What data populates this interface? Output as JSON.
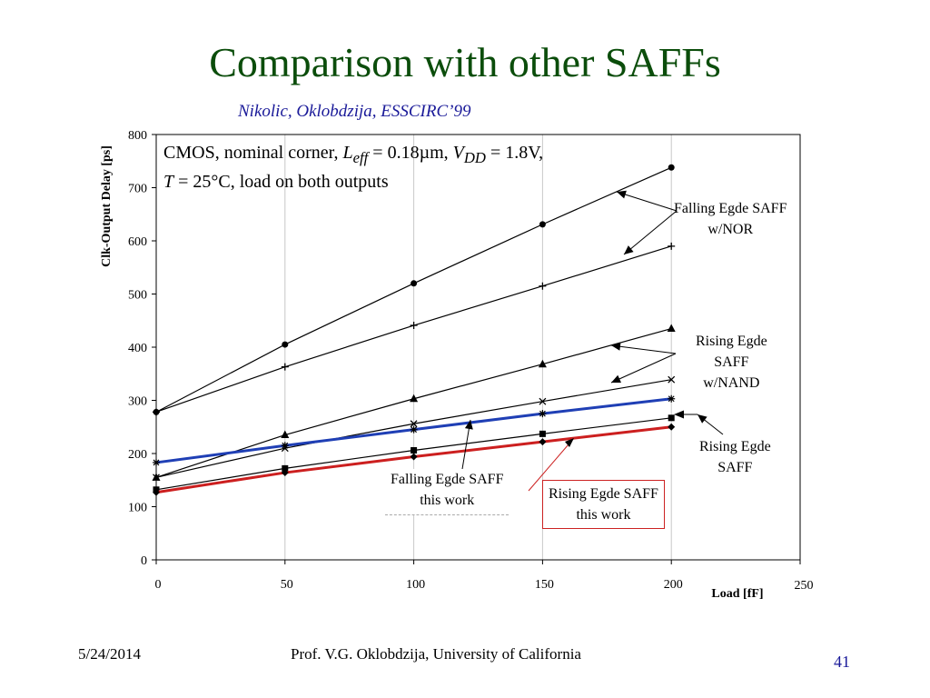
{
  "slide": {
    "title": "Comparison with other SAFFs",
    "subtitle": "Nikolic, Oklobdzija, ESSCIRC’99",
    "footer_date": "5/24/2014",
    "footer_author": "Prof. V.G. Oklobdzija, University of California",
    "page_number": "41"
  },
  "annotation": {
    "line1_a": "CMOS, nominal corner, ",
    "leff_sym": "L",
    "leff_sub": "eff",
    "line1_b": " = 0.18µm, ",
    "vdd_sym": "V",
    "vdd_sub": "DD",
    "line1_c": " = 1.8V,",
    "temp_sym": "T",
    "line2": " = 25°C, load on both outputs"
  },
  "labels": {
    "fall_nor_1": "Falling Egde SAFF",
    "fall_nor_2": "w/NOR",
    "rise_nand_1": "Rising Egde",
    "rise_nand_2": "SAFF",
    "rise_nand_3": "w/NAND",
    "rise_1": "Rising Egde",
    "rise_2": "SAFF",
    "fall_this_1": "Falling Egde SAFF",
    "fall_this_2": "this work",
    "rise_this_1": "Rising Egde SAFF",
    "rise_this_2": "this work"
  },
  "chart_data": {
    "type": "line",
    "xlabel": "Load [fF]",
    "ylabel": "Clk-Output Delay [ps]",
    "xlim": [
      0,
      250
    ],
    "ylim": [
      0,
      800
    ],
    "xticks": [
      0,
      50,
      100,
      150,
      200,
      250
    ],
    "yticks": [
      0,
      100,
      200,
      300,
      400,
      500,
      600,
      700,
      800
    ],
    "grid": "vertical",
    "x": [
      0,
      50,
      100,
      150,
      200
    ],
    "series": [
      {
        "values": [
          278,
          405,
          520,
          631,
          738
        ],
        "marker": "circle",
        "color": "#000000",
        "width": 1.2
      },
      {
        "values": [
          278,
          363,
          441,
          515,
          590
        ],
        "marker": "plus",
        "color": "#000000",
        "width": 1.2
      },
      {
        "values": [
          155,
          235,
          303,
          368,
          435
        ],
        "marker": "triangle",
        "color": "#000000",
        "width": 1.2
      },
      {
        "values": [
          155,
          210,
          256,
          298,
          339
        ],
        "marker": "cross",
        "color": "#000000",
        "width": 1.2
      },
      {
        "values": [
          183,
          215,
          245,
          275,
          303
        ],
        "marker": "star",
        "color": "#1f3fb5",
        "width": 3
      },
      {
        "values": [
          132,
          172,
          206,
          237,
          267
        ],
        "marker": "square",
        "color": "#000000",
        "width": 1.2
      },
      {
        "values": [
          127,
          164,
          194,
          222,
          250
        ],
        "marker": "diamond",
        "color": "#cc1f1f",
        "width": 3
      }
    ]
  }
}
